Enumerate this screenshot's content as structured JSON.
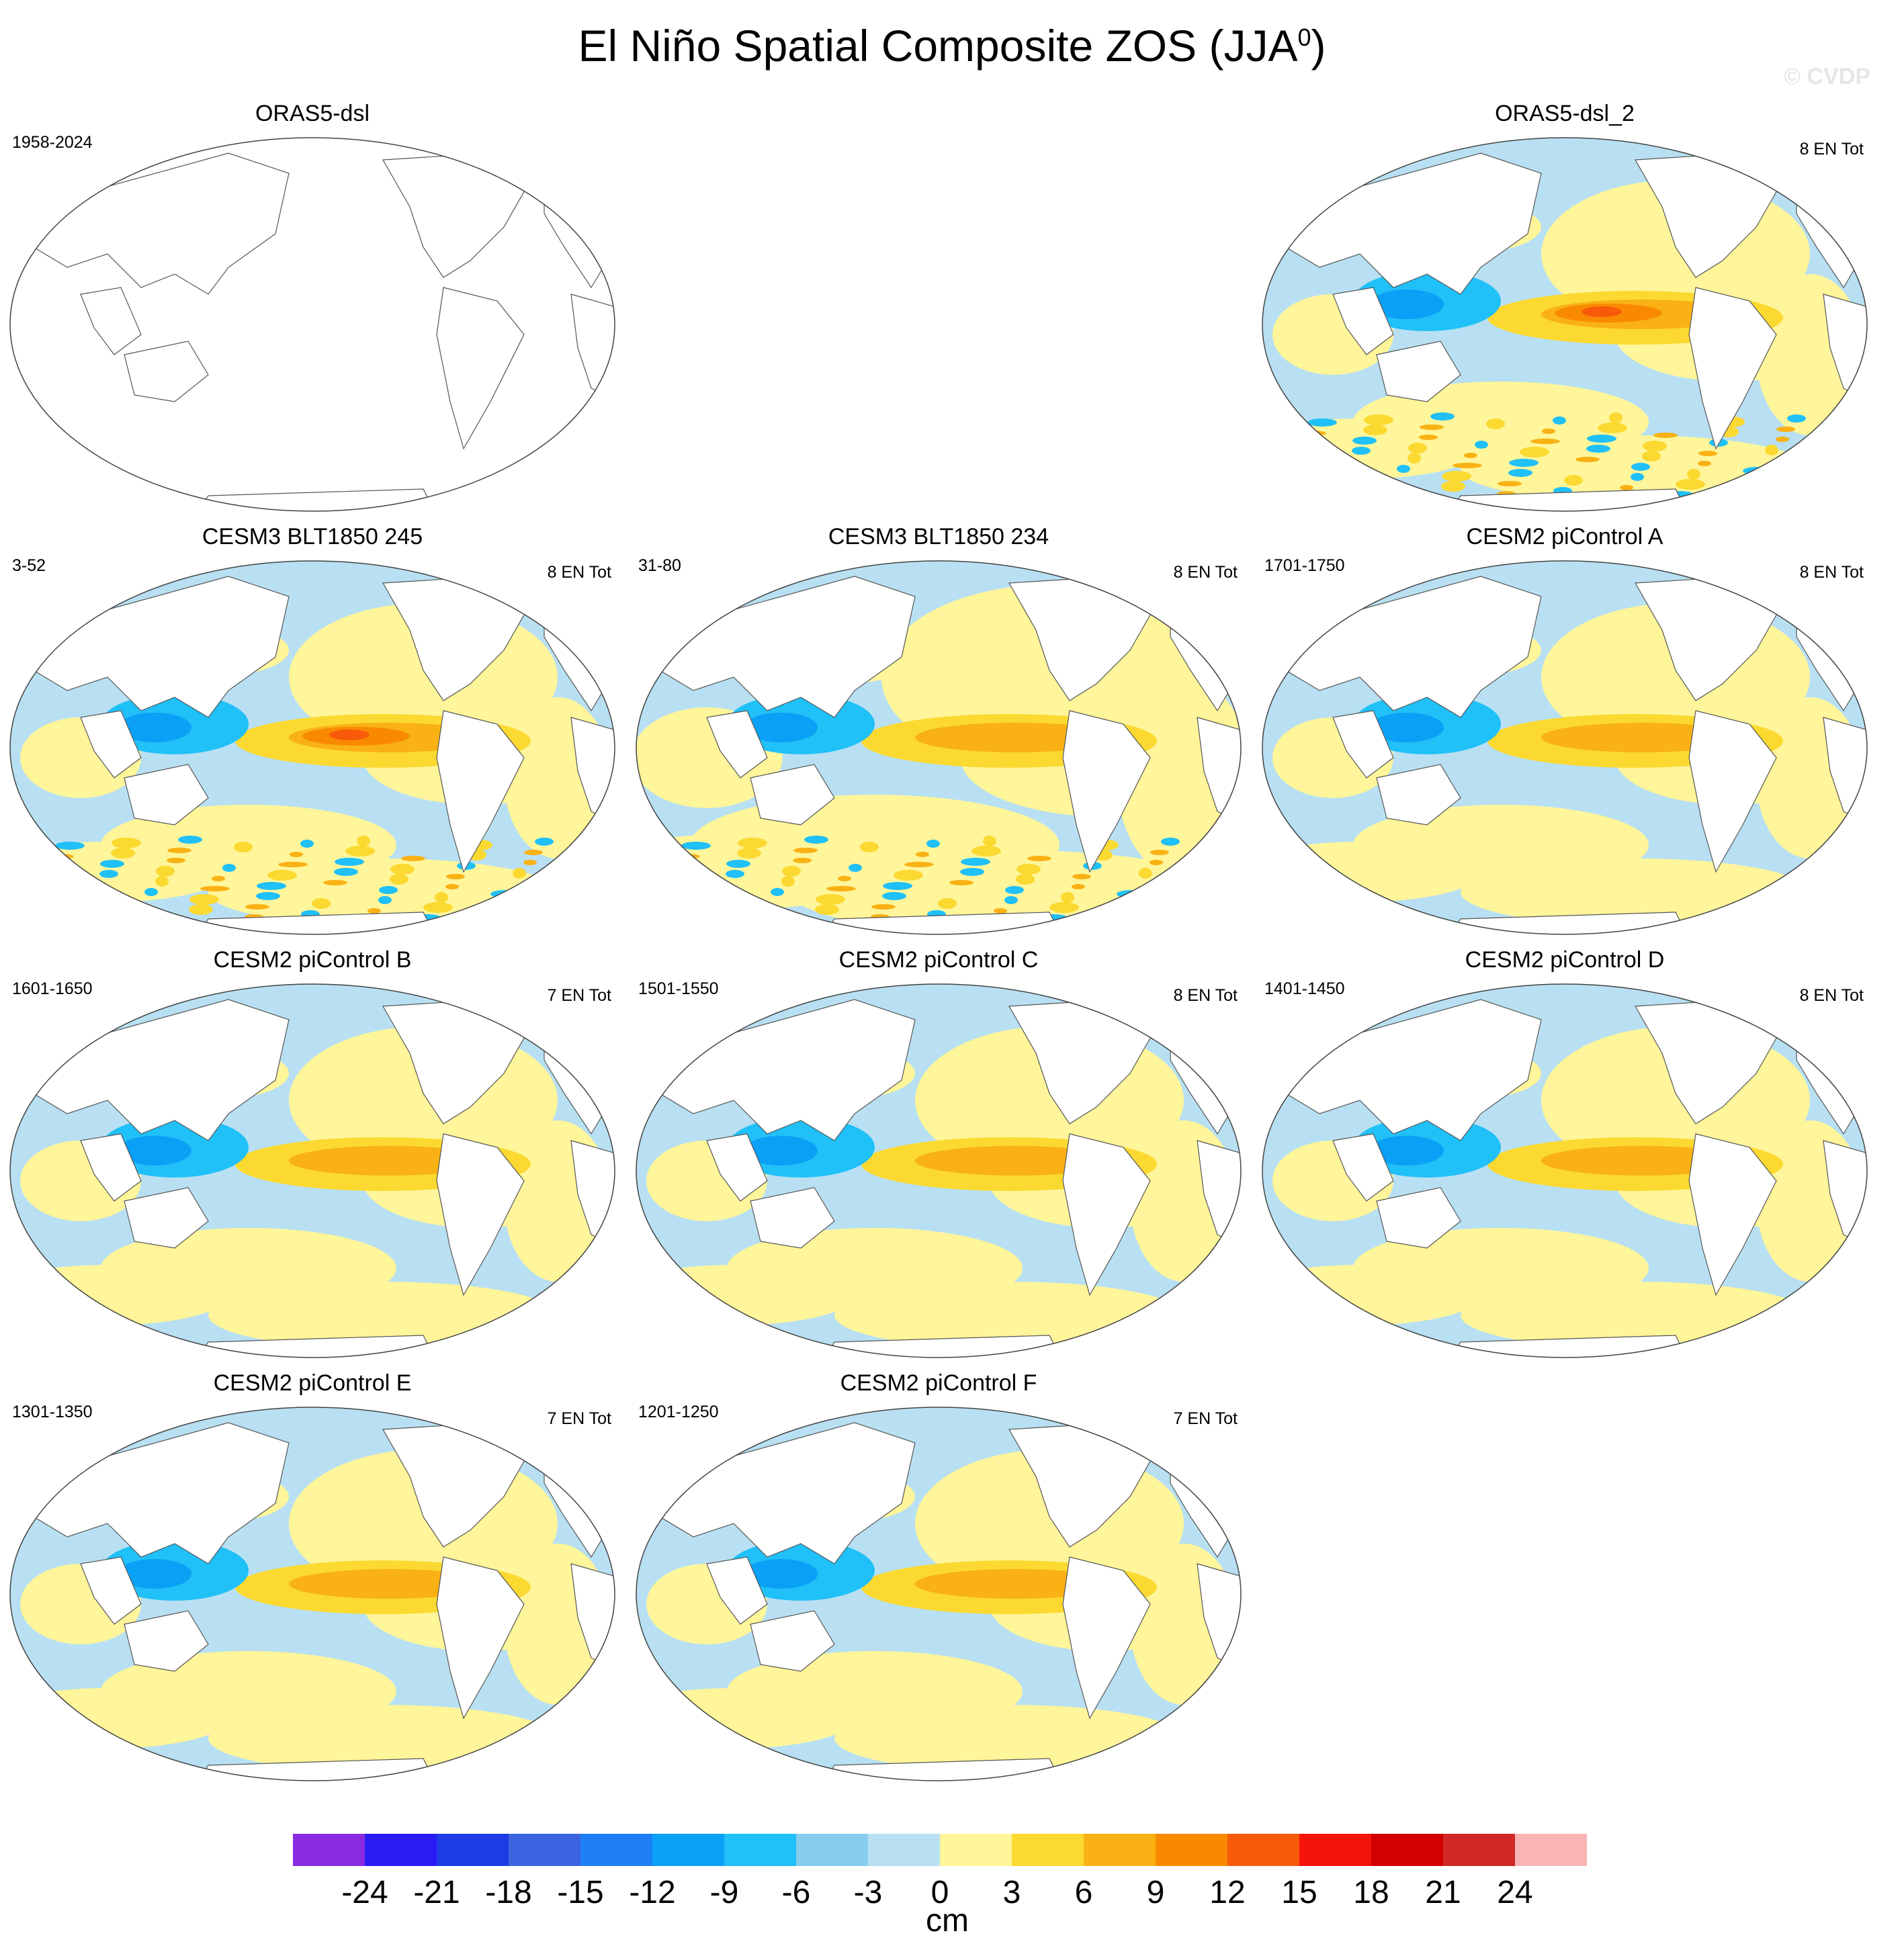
{
  "figure": {
    "title": "El Niño Spatial Composite ZOS (JJA",
    "title_sup": "0",
    "title_close": ")",
    "watermark": "© CVDP"
  },
  "panels": [
    {
      "title": "ORAS5-dsl",
      "left_label": "1958-2024",
      "right_label": "",
      "style": "empty"
    },
    {
      "title": "ORAS5-dsl_2",
      "left_label": "",
      "right_label": "8 EN Tot",
      "style": "noisy"
    },
    {
      "title": "CESM3 BLT1850 245",
      "left_label": "3-52",
      "right_label": "8 EN Tot",
      "style": "strong"
    },
    {
      "title": "CESM3 BLT1850 234",
      "left_label": "31-80",
      "right_label": "8 EN Tot",
      "style": "warm"
    },
    {
      "title": "CESM2 piControl A",
      "left_label": "1701-1750",
      "right_label": "8 EN Tot",
      "style": "smooth"
    },
    {
      "title": "CESM2 piControl B",
      "left_label": "1601-1650",
      "right_label": "7 EN Tot",
      "style": "smooth"
    },
    {
      "title": "CESM2 piControl C",
      "left_label": "1501-1550",
      "right_label": "8 EN Tot",
      "style": "smooth"
    },
    {
      "title": "CESM2 piControl D",
      "left_label": "1401-1450",
      "right_label": "8 EN Tot",
      "style": "smooth"
    },
    {
      "title": "CESM2 piControl E",
      "left_label": "1301-1350",
      "right_label": "7 EN Tot",
      "style": "smooth"
    },
    {
      "title": "CESM2 piControl F",
      "left_label": "1201-1250",
      "right_label": "7 EN Tot",
      "style": "smooth"
    }
  ],
  "colorbar": {
    "unit": "cm",
    "labels": [
      "-24",
      "-21",
      "-18",
      "-15",
      "-12",
      "-9",
      "-6",
      "-3",
      "0",
      "3",
      "6",
      "9",
      "12",
      "15",
      "18",
      "21",
      "24"
    ],
    "colors": [
      "#8a2be2",
      "#2a1cf5",
      "#1e3ce6",
      "#3a64e0",
      "#1e7ff5",
      "#0aa0f5",
      "#20c0f8",
      "#88ccee",
      "#b8e0f2",
      "#fff59a",
      "#fbd930",
      "#f9b114",
      "#f98a00",
      "#f85a0a",
      "#f5140a",
      "#d20000",
      "#d22828",
      "#f9b4b4"
    ]
  }
}
